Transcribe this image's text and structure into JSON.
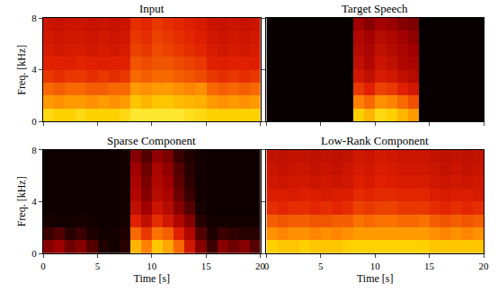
{
  "chart_data": [
    {
      "type": "heatmap",
      "title": "Input",
      "ylabel": "Freq. [kHz]",
      "tick_labels": "y",
      "xlim": [
        0,
        20
      ],
      "xticks": [
        0,
        5,
        10,
        15,
        20
      ],
      "ylim": [
        0,
        8
      ],
      "yticks": [
        0,
        4,
        8
      ],
      "zlim": [
        0,
        1
      ],
      "x": [
        0.5,
        1.5,
        2.5,
        3.5,
        4.5,
        5.5,
        6.5,
        7.5,
        8.5,
        9.5,
        10.5,
        11.5,
        12.5,
        13.5,
        14.5,
        15.5,
        16.5,
        17.5,
        18.5,
        19.5
      ],
      "y": [
        0.5,
        1.5,
        2.5,
        3.5,
        4.5,
        5.5,
        6.5,
        7.5
      ],
      "cells": [
        [
          0.92,
          0.9,
          0.9,
          0.92,
          0.9,
          0.9,
          0.9,
          0.92,
          0.95,
          0.95,
          0.95,
          0.95,
          0.95,
          0.93,
          0.92,
          0.9,
          0.9,
          0.9,
          0.9,
          0.9
        ],
        [
          0.8,
          0.78,
          0.8,
          0.8,
          0.78,
          0.8,
          0.78,
          0.8,
          0.88,
          0.85,
          0.88,
          0.88,
          0.86,
          0.85,
          0.84,
          0.8,
          0.78,
          0.8,
          0.78,
          0.8
        ],
        [
          0.7,
          0.68,
          0.7,
          0.7,
          0.68,
          0.68,
          0.7,
          0.7,
          0.8,
          0.78,
          0.8,
          0.8,
          0.78,
          0.76,
          0.78,
          0.7,
          0.68,
          0.7,
          0.68,
          0.7
        ],
        [
          0.6,
          0.58,
          0.6,
          0.6,
          0.58,
          0.6,
          0.58,
          0.6,
          0.7,
          0.68,
          0.7,
          0.7,
          0.68,
          0.66,
          0.64,
          0.6,
          0.58,
          0.6,
          0.58,
          0.6
        ],
        [
          0.55,
          0.55,
          0.54,
          0.56,
          0.55,
          0.54,
          0.55,
          0.55,
          0.66,
          0.64,
          0.66,
          0.66,
          0.64,
          0.62,
          0.6,
          0.55,
          0.54,
          0.55,
          0.55,
          0.54
        ],
        [
          0.52,
          0.5,
          0.52,
          0.52,
          0.5,
          0.52,
          0.5,
          0.52,
          0.62,
          0.6,
          0.64,
          0.62,
          0.6,
          0.58,
          0.56,
          0.52,
          0.5,
          0.52,
          0.5,
          0.52
        ],
        [
          0.5,
          0.48,
          0.5,
          0.5,
          0.48,
          0.5,
          0.48,
          0.5,
          0.6,
          0.58,
          0.62,
          0.6,
          0.58,
          0.56,
          0.54,
          0.5,
          0.48,
          0.5,
          0.48,
          0.5
        ],
        [
          0.48,
          0.47,
          0.48,
          0.48,
          0.47,
          0.48,
          0.47,
          0.48,
          0.58,
          0.56,
          0.6,
          0.58,
          0.56,
          0.54,
          0.52,
          0.48,
          0.47,
          0.48,
          0.47,
          0.48
        ]
      ]
    },
    {
      "type": "heatmap",
      "title": "Target Speech",
      "tick_labels": false,
      "xlim": [
        0,
        20
      ],
      "xticks": [
        0,
        5,
        10,
        15,
        20
      ],
      "ylim": [
        0,
        8
      ],
      "yticks": [
        0,
        4,
        8
      ],
      "zlim": [
        0,
        1
      ],
      "x": [
        0.5,
        1.5,
        2.5,
        3.5,
        4.5,
        5.5,
        6.5,
        7.5,
        8.5,
        9.5,
        10.5,
        11.5,
        12.5,
        13.5,
        14.5,
        15.5,
        16.5,
        17.5,
        18.5,
        19.5
      ],
      "y": [
        0.5,
        1.5,
        2.5,
        3.5,
        4.5,
        5.5,
        6.5,
        7.5
      ],
      "cells": [
        [
          0.02,
          0.02,
          0.02,
          0.02,
          0.02,
          0.02,
          0.02,
          0.02,
          0.9,
          0.85,
          0.92,
          0.9,
          0.85,
          0.8,
          0.02,
          0.02,
          0.02,
          0.02,
          0.02,
          0.02
        ],
        [
          0.02,
          0.02,
          0.02,
          0.02,
          0.02,
          0.02,
          0.02,
          0.02,
          0.75,
          0.7,
          0.78,
          0.76,
          0.7,
          0.65,
          0.02,
          0.02,
          0.02,
          0.02,
          0.02,
          0.02
        ],
        [
          0.02,
          0.02,
          0.02,
          0.02,
          0.02,
          0.02,
          0.02,
          0.02,
          0.6,
          0.55,
          0.62,
          0.6,
          0.55,
          0.5,
          0.02,
          0.02,
          0.02,
          0.02,
          0.02,
          0.02
        ],
        [
          0.02,
          0.02,
          0.02,
          0.02,
          0.02,
          0.02,
          0.02,
          0.02,
          0.5,
          0.45,
          0.52,
          0.5,
          0.45,
          0.42,
          0.02,
          0.02,
          0.02,
          0.02,
          0.02,
          0.02
        ],
        [
          0.02,
          0.02,
          0.02,
          0.02,
          0.02,
          0.02,
          0.02,
          0.02,
          0.45,
          0.4,
          0.48,
          0.45,
          0.4,
          0.38,
          0.02,
          0.02,
          0.02,
          0.02,
          0.02,
          0.02
        ],
        [
          0.02,
          0.02,
          0.02,
          0.02,
          0.02,
          0.02,
          0.02,
          0.02,
          0.42,
          0.38,
          0.45,
          0.42,
          0.38,
          0.35,
          0.02,
          0.02,
          0.02,
          0.02,
          0.02,
          0.02
        ],
        [
          0.02,
          0.02,
          0.02,
          0.02,
          0.02,
          0.02,
          0.02,
          0.02,
          0.4,
          0.36,
          0.42,
          0.4,
          0.36,
          0.32,
          0.02,
          0.02,
          0.02,
          0.02,
          0.02,
          0.02
        ],
        [
          0.02,
          0.02,
          0.02,
          0.02,
          0.02,
          0.02,
          0.02,
          0.02,
          0.35,
          0.3,
          0.36,
          0.34,
          0.3,
          0.28,
          0.02,
          0.02,
          0.02,
          0.02,
          0.02,
          0.02
        ]
      ]
    },
    {
      "type": "heatmap",
      "title": "Sparse Component",
      "xlabel": "Time [s]",
      "ylabel": "Freq. [kHz]",
      "xlim": [
        0,
        20
      ],
      "xticks": [
        0,
        5,
        10,
        15,
        20
      ],
      "ylim": [
        0,
        8
      ],
      "yticks": [
        0,
        4,
        8
      ],
      "zlim": [
        0,
        1
      ],
      "x": [
        0.5,
        1.5,
        2.5,
        3.5,
        4.5,
        5.5,
        6.5,
        7.5,
        8.5,
        9.5,
        10.5,
        11.5,
        12.5,
        13.5,
        14.5,
        15.5,
        16.5,
        17.5,
        18.5,
        19.5
      ],
      "y": [
        0.5,
        1.5,
        2.5,
        3.5,
        4.5,
        5.5,
        6.5,
        7.5
      ],
      "cells": [
        [
          0.3,
          0.35,
          0.25,
          0.3,
          0.2,
          0.08,
          0.05,
          0.1,
          0.85,
          0.75,
          0.88,
          0.82,
          0.7,
          0.5,
          0.3,
          0.15,
          0.3,
          0.25,
          0.3,
          0.2
        ],
        [
          0.15,
          0.2,
          0.1,
          0.15,
          0.08,
          0.05,
          0.05,
          0.08,
          0.7,
          0.6,
          0.72,
          0.68,
          0.55,
          0.4,
          0.2,
          0.08,
          0.15,
          0.12,
          0.1,
          0.1
        ],
        [
          0.06,
          0.05,
          0.05,
          0.06,
          0.05,
          0.04,
          0.04,
          0.06,
          0.55,
          0.45,
          0.58,
          0.5,
          0.4,
          0.3,
          0.1,
          0.05,
          0.05,
          0.05,
          0.05,
          0.05
        ],
        [
          0.04,
          0.04,
          0.04,
          0.04,
          0.04,
          0.04,
          0.04,
          0.05,
          0.45,
          0.35,
          0.48,
          0.42,
          0.3,
          0.2,
          0.06,
          0.04,
          0.04,
          0.04,
          0.04,
          0.04
        ],
        [
          0.04,
          0.04,
          0.04,
          0.04,
          0.04,
          0.04,
          0.04,
          0.05,
          0.4,
          0.3,
          0.42,
          0.38,
          0.25,
          0.15,
          0.05,
          0.04,
          0.04,
          0.04,
          0.04,
          0.04
        ],
        [
          0.04,
          0.04,
          0.04,
          0.04,
          0.04,
          0.04,
          0.04,
          0.05,
          0.38,
          0.28,
          0.4,
          0.35,
          0.22,
          0.12,
          0.05,
          0.04,
          0.04,
          0.04,
          0.04,
          0.04
        ],
        [
          0.04,
          0.04,
          0.04,
          0.04,
          0.04,
          0.04,
          0.04,
          0.05,
          0.35,
          0.25,
          0.38,
          0.32,
          0.2,
          0.1,
          0.05,
          0.04,
          0.04,
          0.04,
          0.04,
          0.04
        ],
        [
          0.04,
          0.04,
          0.04,
          0.04,
          0.04,
          0.04,
          0.04,
          0.05,
          0.3,
          0.2,
          0.32,
          0.28,
          0.15,
          0.08,
          0.05,
          0.04,
          0.04,
          0.04,
          0.04,
          0.04
        ]
      ]
    },
    {
      "type": "heatmap",
      "title": "Low-Rank Component",
      "xlabel": "Time [s]",
      "tick_labels": "x",
      "xlim": [
        0,
        20
      ],
      "xticks": [
        0,
        5,
        10,
        15,
        20
      ],
      "ylim": [
        0,
        8
      ],
      "yticks": [
        0,
        4,
        8
      ],
      "zlim": [
        0,
        1
      ],
      "x": [
        0.5,
        1.5,
        2.5,
        3.5,
        4.5,
        5.5,
        6.5,
        7.5,
        8.5,
        9.5,
        10.5,
        11.5,
        12.5,
        13.5,
        14.5,
        15.5,
        16.5,
        17.5,
        18.5,
        19.5
      ],
      "y": [
        0.5,
        1.5,
        2.5,
        3.5,
        4.5,
        5.5,
        6.5,
        7.5
      ],
      "cells": [
        [
          0.9,
          0.88,
          0.88,
          0.9,
          0.88,
          0.88,
          0.88,
          0.9,
          0.9,
          0.9,
          0.9,
          0.9,
          0.9,
          0.9,
          0.9,
          0.88,
          0.88,
          0.88,
          0.88,
          0.88
        ],
        [
          0.78,
          0.76,
          0.78,
          0.78,
          0.76,
          0.78,
          0.76,
          0.78,
          0.8,
          0.8,
          0.8,
          0.8,
          0.8,
          0.8,
          0.8,
          0.78,
          0.76,
          0.78,
          0.76,
          0.78
        ],
        [
          0.68,
          0.66,
          0.68,
          0.68,
          0.66,
          0.66,
          0.68,
          0.68,
          0.72,
          0.7,
          0.72,
          0.72,
          0.7,
          0.7,
          0.72,
          0.68,
          0.66,
          0.68,
          0.66,
          0.68
        ],
        [
          0.58,
          0.56,
          0.58,
          0.58,
          0.56,
          0.58,
          0.56,
          0.58,
          0.62,
          0.6,
          0.62,
          0.62,
          0.6,
          0.6,
          0.6,
          0.58,
          0.56,
          0.58,
          0.56,
          0.58
        ],
        [
          0.53,
          0.53,
          0.52,
          0.54,
          0.53,
          0.52,
          0.53,
          0.53,
          0.57,
          0.56,
          0.57,
          0.57,
          0.56,
          0.56,
          0.56,
          0.53,
          0.52,
          0.53,
          0.53,
          0.52
        ],
        [
          0.5,
          0.48,
          0.5,
          0.5,
          0.48,
          0.5,
          0.48,
          0.5,
          0.54,
          0.52,
          0.55,
          0.54,
          0.52,
          0.52,
          0.52,
          0.5,
          0.48,
          0.5,
          0.48,
          0.5
        ],
        [
          0.48,
          0.46,
          0.48,
          0.48,
          0.46,
          0.48,
          0.46,
          0.48,
          0.52,
          0.5,
          0.53,
          0.52,
          0.5,
          0.5,
          0.5,
          0.48,
          0.46,
          0.48,
          0.46,
          0.48
        ],
        [
          0.46,
          0.45,
          0.46,
          0.46,
          0.45,
          0.46,
          0.45,
          0.46,
          0.5,
          0.48,
          0.51,
          0.5,
          0.48,
          0.48,
          0.48,
          0.46,
          0.45,
          0.46,
          0.45,
          0.46
        ]
      ]
    }
  ]
}
